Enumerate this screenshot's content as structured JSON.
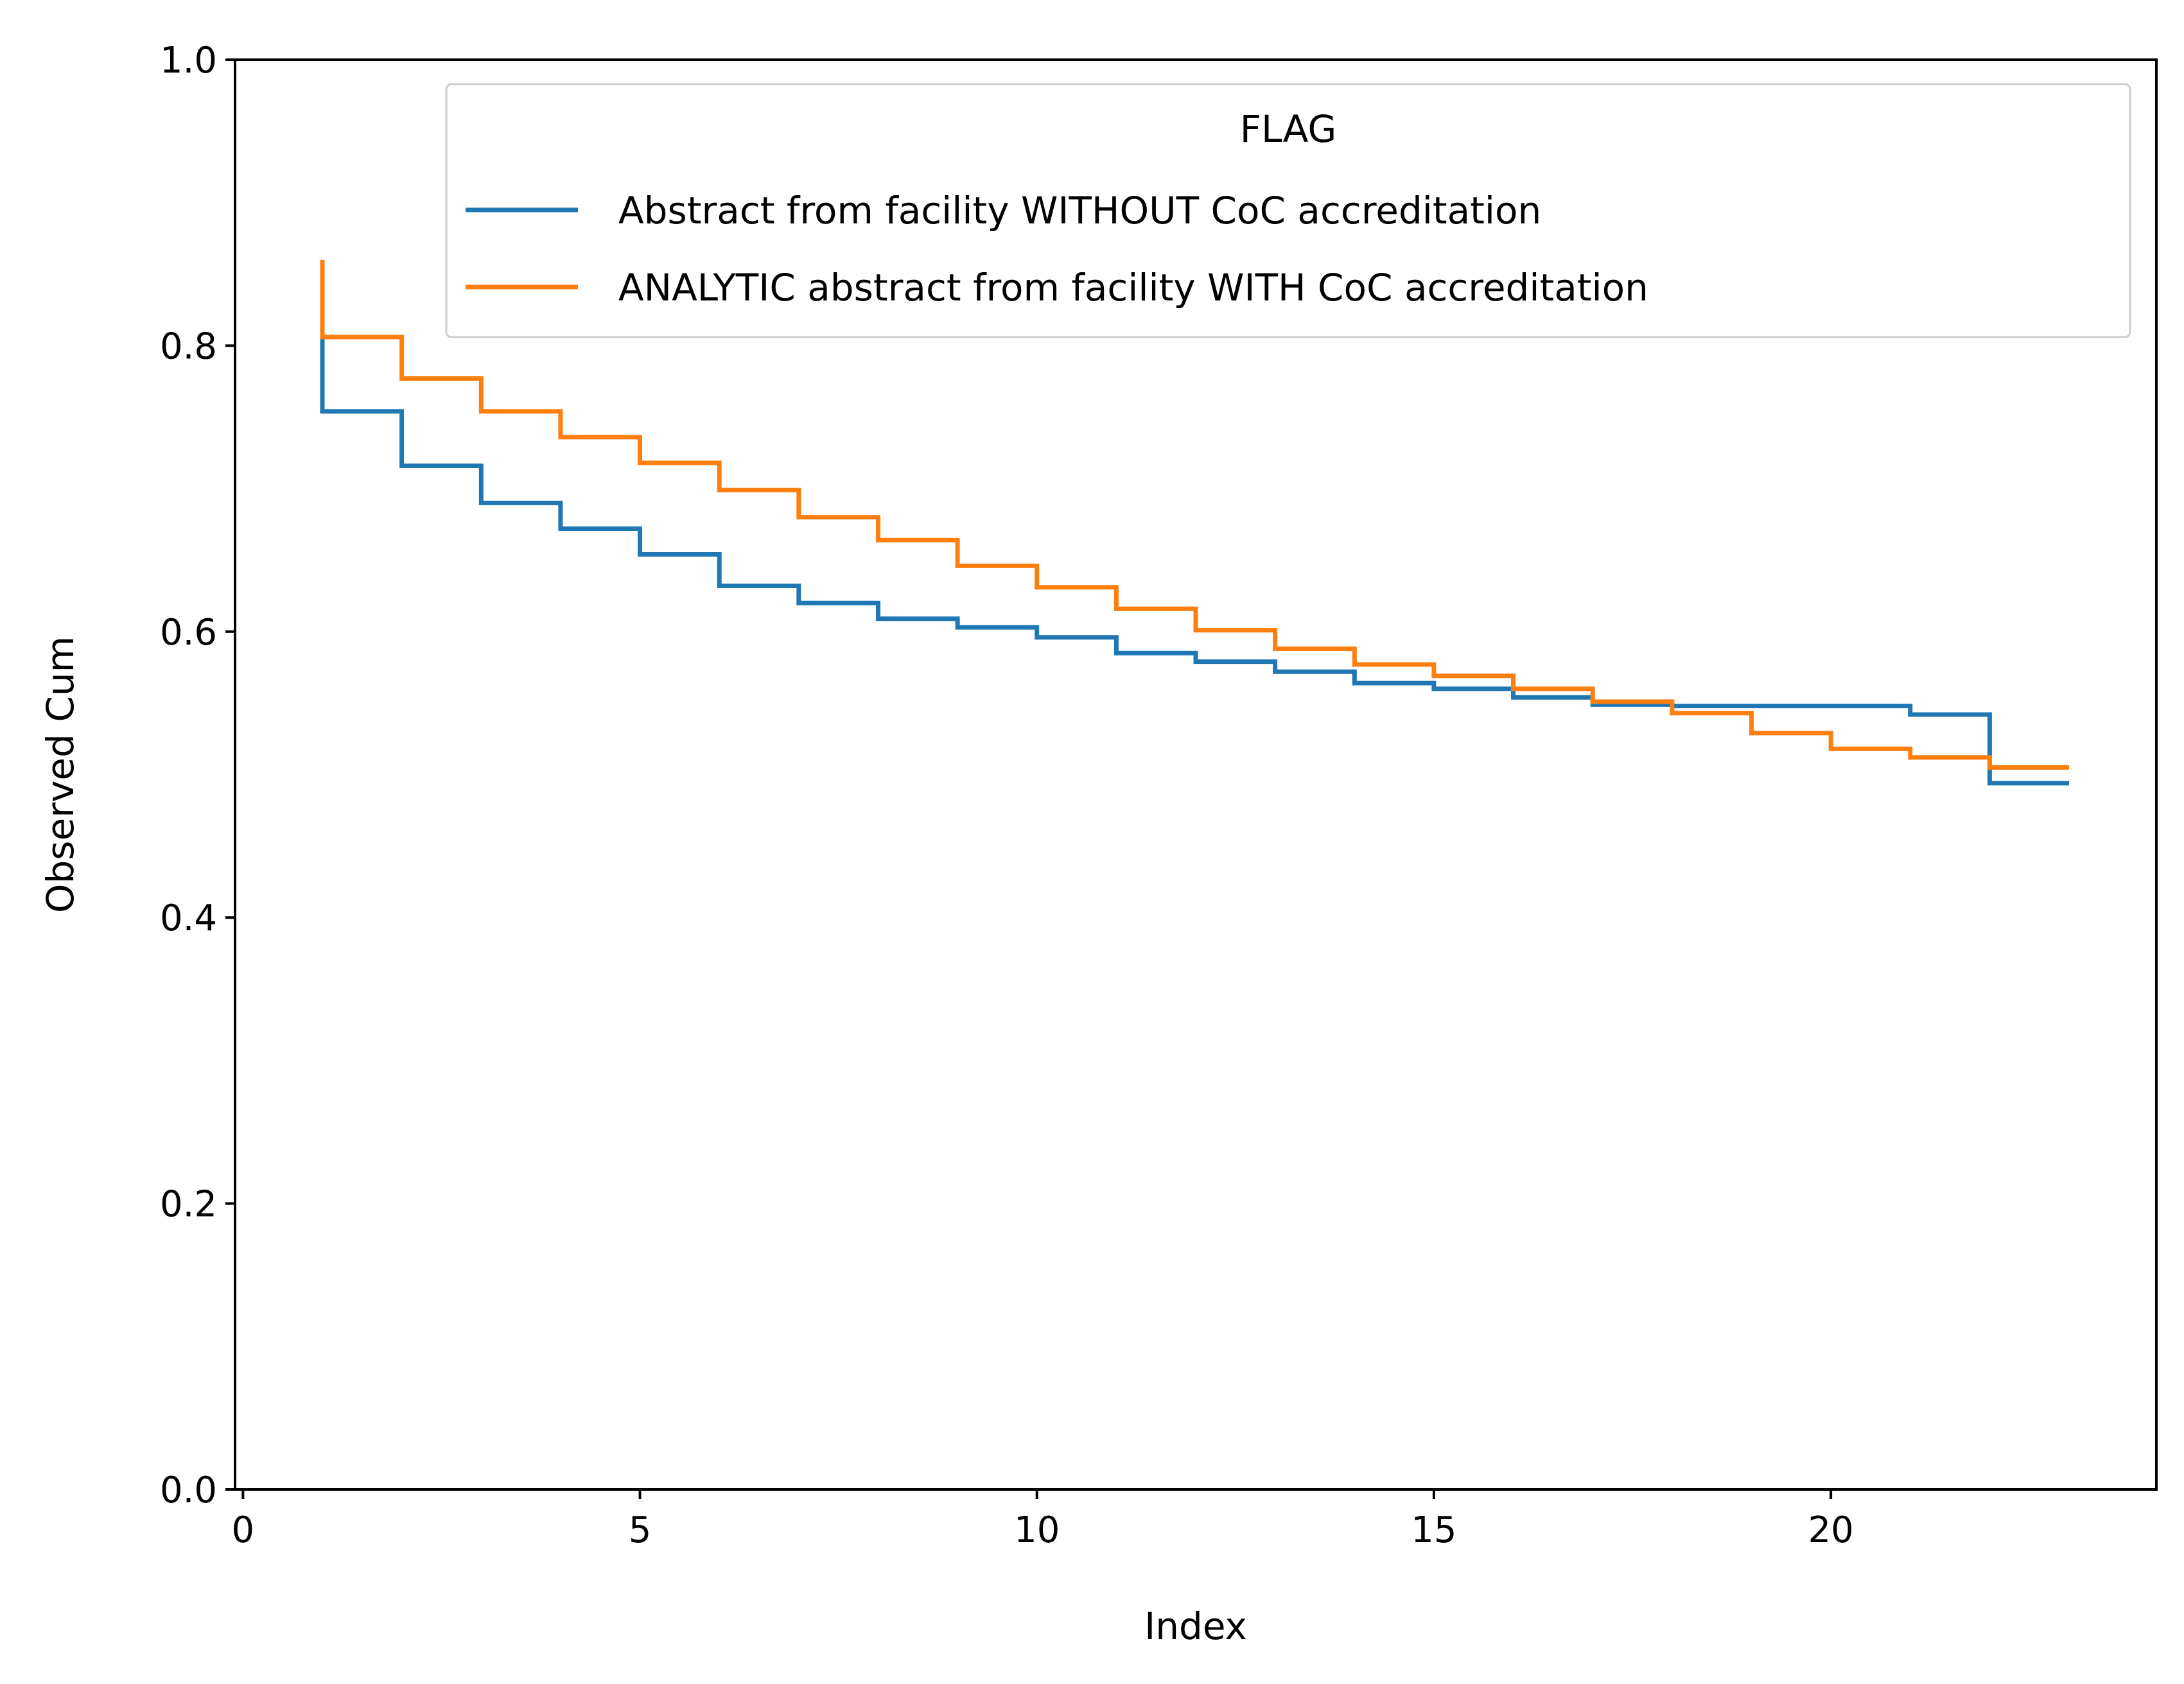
{
  "chart_data": {
    "type": "line",
    "drawstyle": "steps-post",
    "title": "",
    "xlabel": "Index",
    "ylabel": "Observed Cum",
    "xlim": [
      -0.1,
      24.1
    ],
    "ylim": [
      0.0,
      1.0
    ],
    "xticks": [
      0,
      5,
      10,
      15,
      20
    ],
    "yticks": [
      0.0,
      0.2,
      0.4,
      0.6,
      0.8,
      1.0
    ],
    "xtick_labels": [
      "0",
      "5",
      "10",
      "15",
      "20"
    ],
    "ytick_labels": [
      "0.0",
      "0.2",
      "0.4",
      "0.6",
      "0.8",
      "1.0"
    ],
    "grid": false,
    "legend": {
      "title": "FLAG",
      "placement": "upper right"
    },
    "series": [
      {
        "name": "Abstract from facility WITHOUT CoC accreditation",
        "color": "#1f77b4",
        "x": [
          1,
          1,
          2,
          3,
          4,
          5,
          6,
          7,
          8,
          9,
          10,
          11,
          12,
          13,
          14,
          15,
          16,
          17,
          18,
          19,
          20,
          21,
          22,
          23
        ],
        "y": [
          0.81,
          0.754,
          0.716,
          0.69,
          0.672,
          0.654,
          0.632,
          0.62,
          0.609,
          0.603,
          0.596,
          0.585,
          0.579,
          0.572,
          0.564,
          0.56,
          0.554,
          0.549,
          0.548,
          0.548,
          0.548,
          0.542,
          0.494,
          0.494
        ]
      },
      {
        "name": "ANALYTIC abstract from facility WITH CoC accreditation",
        "color": "#ff7f0e",
        "x": [
          1,
          1,
          2,
          3,
          4,
          5,
          6,
          7,
          8,
          9,
          10,
          11,
          12,
          13,
          14,
          15,
          16,
          17,
          18,
          19,
          20,
          21,
          22,
          23
        ],
        "y": [
          0.86,
          0.806,
          0.777,
          0.754,
          0.736,
          0.718,
          0.699,
          0.68,
          0.664,
          0.646,
          0.631,
          0.616,
          0.601,
          0.588,
          0.577,
          0.569,
          0.56,
          0.551,
          0.543,
          0.529,
          0.518,
          0.512,
          0.505,
          0.505
        ]
      }
    ]
  }
}
